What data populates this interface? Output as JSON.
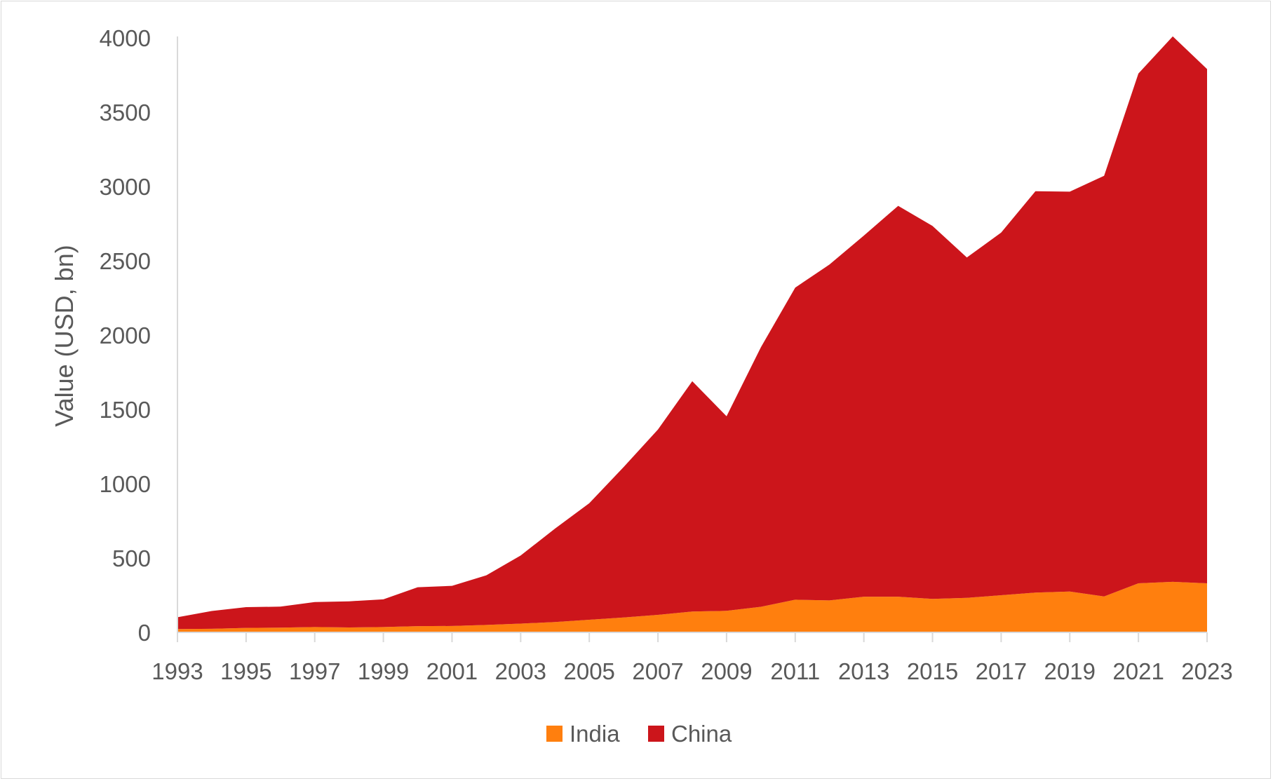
{
  "chart_data": {
    "type": "area",
    "stacked": true,
    "x": [
      1993,
      1994,
      1995,
      1996,
      1997,
      1998,
      1999,
      2000,
      2001,
      2002,
      2003,
      2004,
      2005,
      2006,
      2007,
      2008,
      2009,
      2010,
      2011,
      2012,
      2013,
      2014,
      2015,
      2016,
      2017,
      2018,
      2019,
      2020,
      2021,
      2022,
      2023
    ],
    "series": [
      {
        "name": "India",
        "color": "#ff7f0e",
        "values": [
          22,
          24,
          30,
          32,
          36,
          33,
          36,
          42,
          43,
          50,
          59,
          70,
          85,
          100,
          118,
          140,
          145,
          172,
          220,
          215,
          240,
          240,
          225,
          232,
          250,
          268,
          275,
          242,
          330,
          340,
          330
        ]
      },
      {
        "name": "China",
        "color": "#cc151b",
        "values": [
          80,
          120,
          140,
          141,
          168,
          176,
          186,
          262,
          270,
          334,
          458,
          628,
          784,
          1012,
          1247,
          1550,
          1309,
          1747,
          2100,
          2260,
          2430,
          2630,
          2510,
          2290,
          2440,
          2700,
          2690,
          2830,
          3430,
          3670,
          3460
        ]
      }
    ],
    "x_ticks": [
      "1993",
      "1995",
      "1997",
      "1999",
      "2001",
      "2003",
      "2005",
      "2007",
      "2009",
      "2011",
      "2013",
      "2015",
      "2017",
      "2019",
      "2021",
      "2023"
    ],
    "y_ticks": [
      "0",
      "500",
      "1000",
      "1500",
      "2000",
      "2500",
      "3000",
      "3500",
      "4000"
    ],
    "ylim": [
      0,
      4000
    ],
    "xlim": [
      1993,
      2023
    ],
    "title": "",
    "xlabel": "",
    "ylabel": "Value (USD, bn)",
    "legend": {
      "position": "bottom",
      "entries": [
        "India",
        "China"
      ]
    },
    "grid": false
  }
}
